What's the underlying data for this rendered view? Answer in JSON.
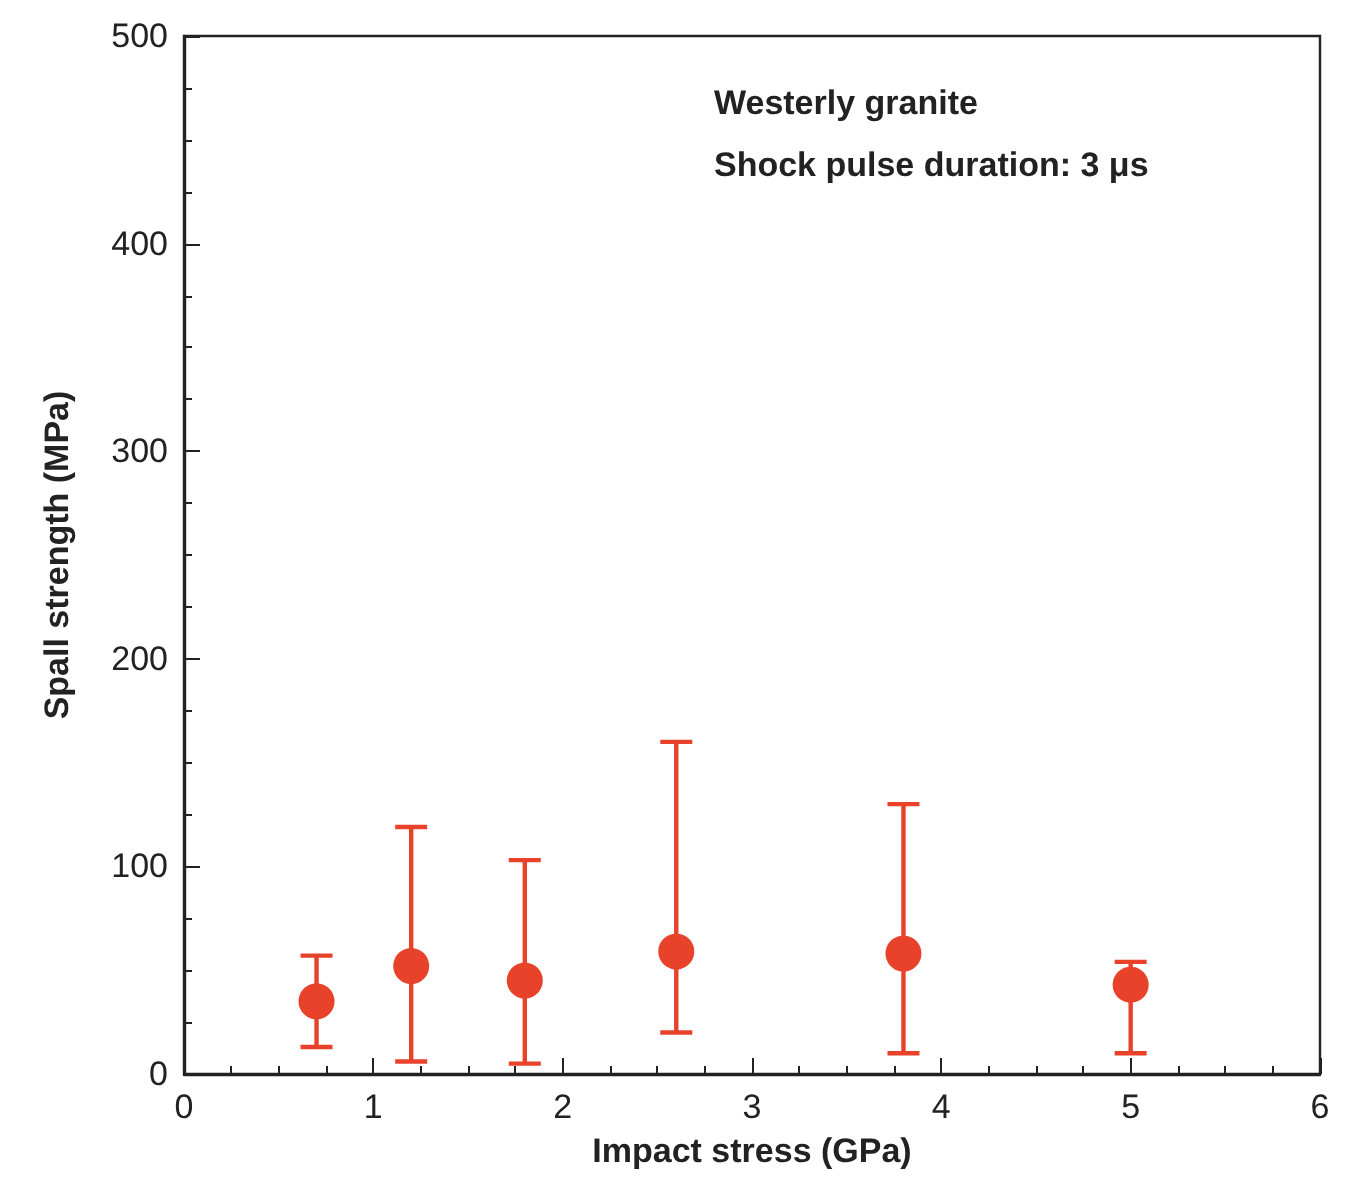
{
  "chart_data": {
    "type": "scatter",
    "xlabel": "Impact stress (GPa)",
    "ylabel": "Spall strength (MPa)",
    "annotations": [
      "Westerly granite",
      "Shock pulse duration: 3 μs"
    ],
    "x": [
      0.7,
      1.2,
      1.8,
      2.6,
      3.8,
      5.0
    ],
    "series": [
      {
        "color": "#e8432a",
        "values": [
          35,
          52,
          45,
          59,
          58,
          43
        ],
        "errors": [
          [
            13,
            57
          ],
          [
            6,
            119
          ],
          [
            5,
            103
          ],
          [
            20,
            160
          ],
          [
            10,
            130
          ],
          [
            10,
            54
          ]
        ]
      }
    ],
    "xlim": [
      0,
      6
    ],
    "xticks": [
      0,
      1,
      2,
      3,
      4,
      5,
      6
    ],
    "ylim": [
      0,
      500
    ],
    "yticks": [
      0,
      100,
      200,
      300,
      400,
      500
    ],
    "marker": "circle",
    "grid": false
  }
}
